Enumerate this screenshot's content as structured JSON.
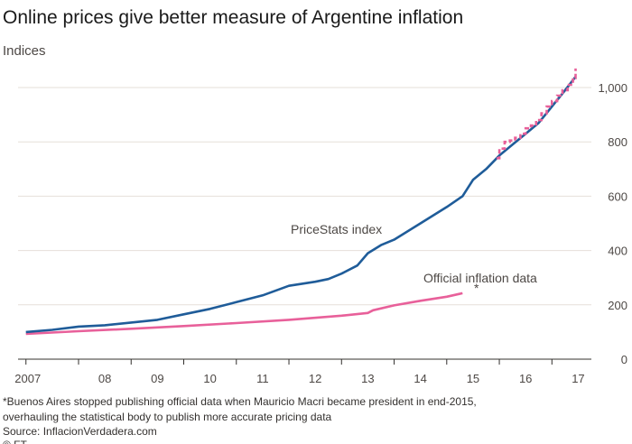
{
  "title": "Online prices give better measure of Argentine inflation",
  "subtitle": "Indices",
  "footnotes": [
    "*Buenos Aires stopped publishing official data when Mauricio Macri became president in end-2015,",
    "overhauling the statistical body to publish more accurate pricing data",
    "Source: InflacionVerdadera.com",
    "© FT"
  ],
  "colors": {
    "pricestats": "#1f5c99",
    "official": "#e8609a",
    "official_monthly": "#e8609a",
    "grid": "#e6dfd9",
    "axis": "#33302e"
  },
  "chart_data": {
    "type": "line",
    "title": "Online prices give better measure of Argentine inflation",
    "ylabel": "Indices",
    "ylim": [
      0,
      1100
    ],
    "xlim": [
      2006.85,
      2017.75
    ],
    "y_ticks": [
      0,
      200,
      400,
      600,
      800,
      1000
    ],
    "y_tick_labels": [
      "0",
      "200",
      "400",
      "600",
      "800",
      "1,000"
    ],
    "x_tick_positions": [
      2007,
      2008,
      2009,
      2010,
      2011,
      2012,
      2013,
      2014,
      2015,
      2016,
      2017,
      2018
    ],
    "x_labels": [
      "2007",
      "08",
      "09",
      "10",
      "11",
      "12",
      "13",
      "14",
      "15",
      "16",
      "17"
    ],
    "grid": true,
    "annotations": [
      {
        "text": "PriceStats index",
        "series": "pricestats"
      },
      {
        "text": "Official inflation data",
        "series": "official"
      },
      {
        "text": "*",
        "series": "official"
      }
    ],
    "series": [
      {
        "key": "pricestats",
        "x": [
          2007.0,
          2007.5,
          2008.0,
          2008.5,
          2009.0,
          2009.5,
          2010.0,
          2010.5,
          2011.0,
          2011.5,
          2012.0,
          2012.5,
          2012.75,
          2013.0,
          2013.3,
          2013.5,
          2013.75,
          2014.0,
          2014.5,
          2015.0,
          2015.3,
          2015.5,
          2015.75,
          2016.0,
          2016.25,
          2016.5,
          2016.75,
          2017.0,
          2017.25,
          2017.45
        ],
        "y": [
          100,
          108,
          120,
          125,
          135,
          145,
          165,
          185,
          210,
          235,
          270,
          285,
          295,
          315,
          345,
          390,
          420,
          440,
          500,
          560,
          600,
          660,
          700,
          750,
          790,
          830,
          870,
          930,
          990,
          1040
        ]
      },
      {
        "key": "official",
        "x": [
          2007.0,
          2008.0,
          2009.0,
          2010.0,
          2011.0,
          2012.0,
          2013.0,
          2013.5,
          2013.6,
          2014.0,
          2014.5,
          2015.0,
          2015.3
        ],
        "y": [
          93,
          103,
          112,
          122,
          133,
          145,
          160,
          170,
          180,
          198,
          215,
          230,
          243
        ]
      },
      {
        "key": "official_monthly",
        "x": [
          2015.95,
          2016.0,
          2016.1,
          2016.2,
          2016.3,
          2016.4,
          2016.5,
          2016.6,
          2016.7,
          2016.8,
          2016.9,
          2017.0,
          2017.1,
          2017.2,
          2017.3,
          2017.4,
          2017.45
        ],
        "y": [
          740,
          775,
          800,
          805,
          815,
          830,
          850,
          860,
          880,
          905,
          930,
          950,
          970,
          990,
          1010,
          1035,
          1070
        ]
      }
    ]
  }
}
